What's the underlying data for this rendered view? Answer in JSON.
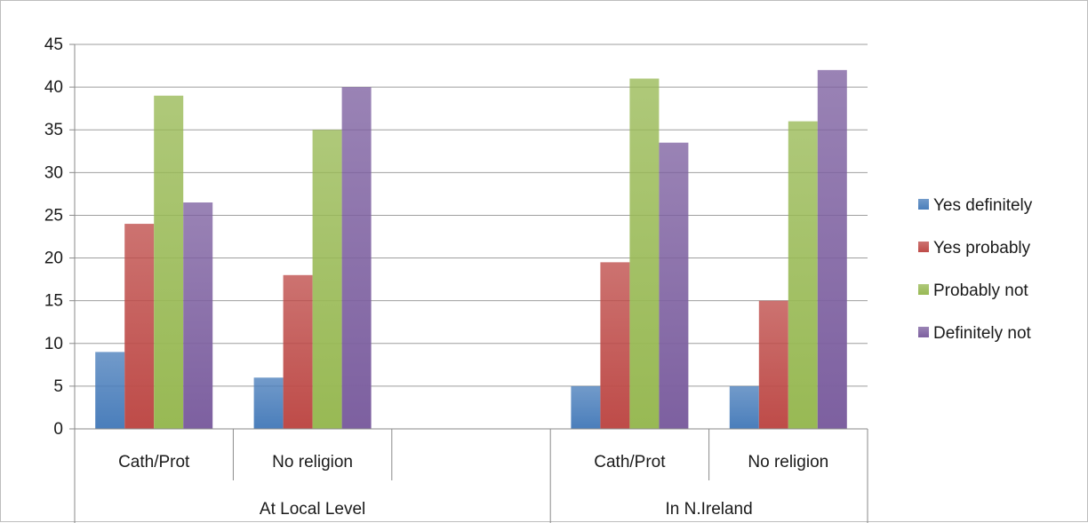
{
  "chart_data": {
    "type": "bar",
    "title": "",
    "xlabel": "",
    "ylabel": "",
    "ylim": [
      0,
      45
    ],
    "yticks": [
      0,
      5,
      10,
      15,
      20,
      25,
      30,
      35,
      40,
      45
    ],
    "grid": true,
    "legend_position": "right",
    "groups": [
      {
        "label": "At Local Level",
        "categories": [
          "Cath/Prot",
          "No religion",
          ""
        ]
      },
      {
        "label": "In N.Ireland",
        "categories": [
          "Cath/Prot",
          "No religion"
        ]
      }
    ],
    "categories": [
      "Cath/Prot",
      "No religion",
      "",
      "Cath/Prot",
      "No religion"
    ],
    "series": [
      {
        "name": "Yes definitely",
        "color": "#4a7ebb",
        "values": [
          9,
          6,
          null,
          5,
          5
        ]
      },
      {
        "name": "Yes probably",
        "color": "#be4b48",
        "values": [
          24,
          18,
          null,
          19.5,
          15
        ]
      },
      {
        "name": "Probably not",
        "color": "#98b954",
        "values": [
          39,
          35,
          null,
          41,
          36
        ]
      },
      {
        "name": "Definitely not",
        "color": "#7d60a0",
        "values": [
          26.5,
          40,
          null,
          33.5,
          42
        ]
      }
    ]
  }
}
